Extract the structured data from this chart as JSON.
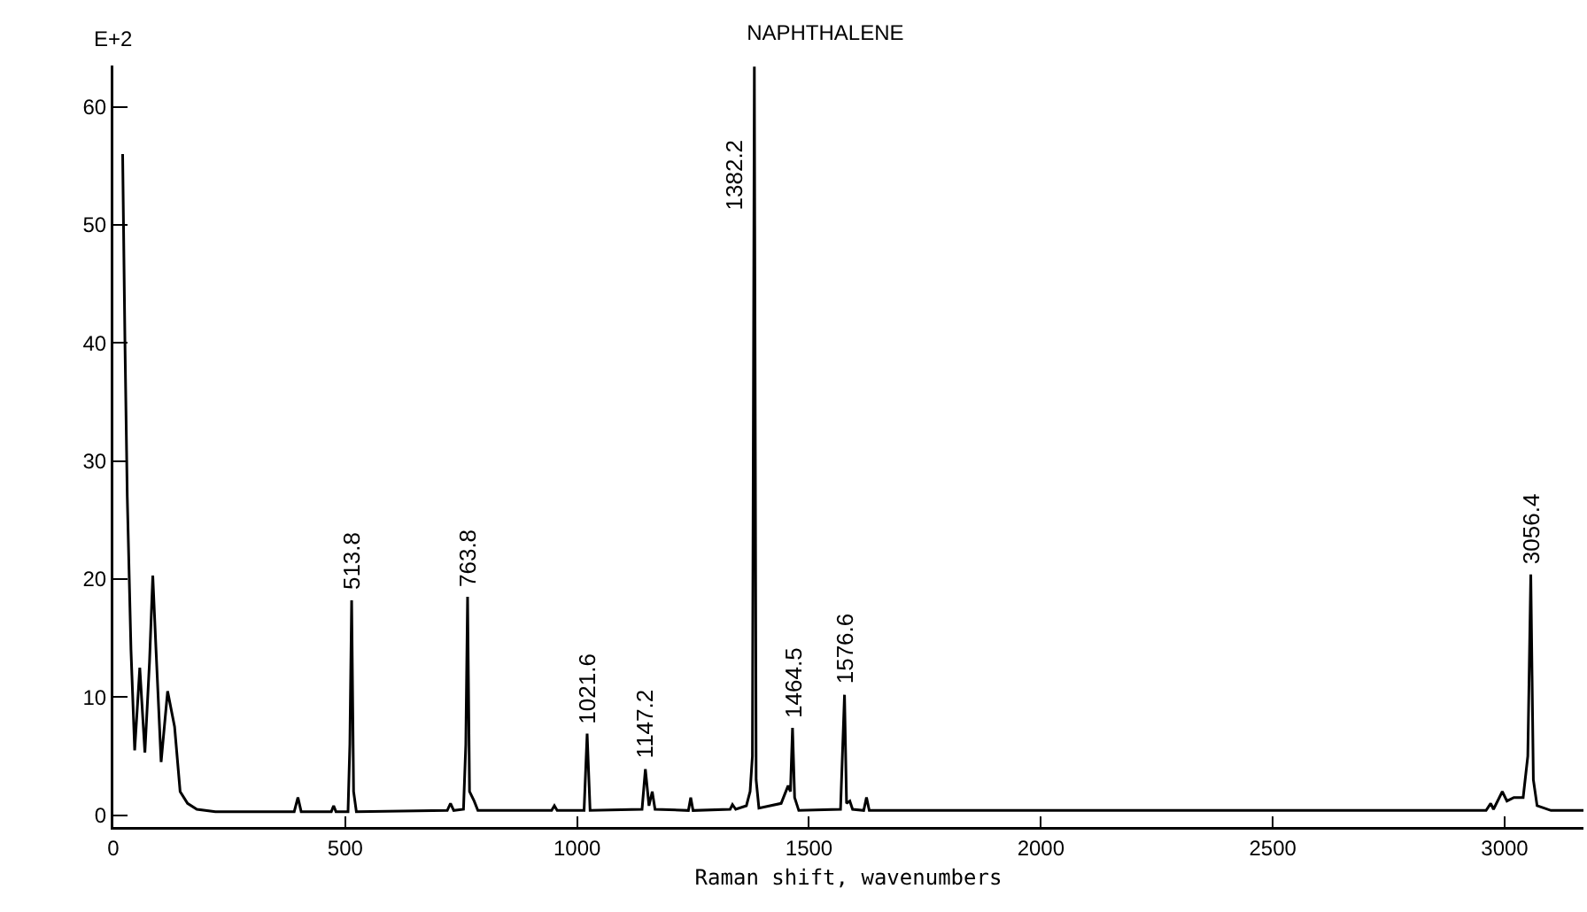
{
  "chart_data": {
    "type": "line",
    "title": "NAPHTHALENE",
    "xlabel": "Raman shift, wavenumbers",
    "xlim": [
      0,
      3170
    ],
    "xticks": [
      0,
      500,
      1000,
      1500,
      2000,
      2500,
      3000
    ],
    "ylim": [
      -1,
      63.5
    ],
    "yticks": [
      0,
      10,
      20,
      30,
      40,
      50,
      60
    ],
    "grid": false,
    "marker": "none",
    "line_style": "solid",
    "series": [
      {
        "color": "#000000",
        "x": [
          20,
          25,
          30,
          38,
          46,
          57,
          68,
          78,
          85,
          92,
          103,
          117,
          132,
          144,
          160,
          180,
          220,
          390,
          398,
          405,
          470,
          475,
          480,
          506,
          510,
          513.8,
          518,
          524,
          720,
          727,
          734,
          755,
          760,
          763.8,
          768,
          778,
          786,
          945,
          951,
          957,
          1015,
          1021.6,
          1028,
          1140,
          1147.2,
          1155,
          1162,
          1168,
          1240,
          1245,
          1250,
          1330,
          1335,
          1342,
          1365,
          1373,
          1378,
          1382.2,
          1386,
          1392,
          1440,
          1455,
          1460,
          1464.5,
          1469,
          1478,
          1568,
          1576.6,
          1581,
          1588,
          1594,
          1618,
          1624,
          1630,
          2960,
          2970,
          2976,
          2995,
          3005,
          3020,
          3040,
          3050,
          3056.4,
          3062,
          3070,
          3100,
          3170
        ],
        "values": [
          56,
          40,
          27,
          14,
          5.5,
          12.5,
          5.3,
          13,
          20.3,
          14,
          4.5,
          10.5,
          7.5,
          2,
          1,
          0.5,
          0.3,
          0.3,
          1.5,
          0.3,
          0.3,
          0.8,
          0.3,
          0.3,
          6,
          18.2,
          2,
          0.3,
          0.4,
          1,
          0.4,
          0.5,
          6,
          18.5,
          2,
          1.2,
          0.4,
          0.4,
          0.8,
          0.4,
          0.4,
          6.9,
          0.4,
          0.5,
          3.9,
          0.8,
          2,
          0.5,
          0.4,
          1.5,
          0.4,
          0.5,
          0.9,
          0.5,
          0.8,
          2,
          5,
          63.4,
          3,
          0.6,
          1,
          2.5,
          2,
          7.4,
          1.5,
          0.4,
          0.5,
          10.2,
          1,
          1.2,
          0.5,
          0.4,
          1.5,
          0.4,
          0.4,
          1,
          0.5,
          2,
          1.2,
          1.5,
          1.5,
          5,
          20.4,
          3,
          0.8,
          0.4,
          0.4
        ]
      }
    ],
    "annotations": [
      "E+2",
      {
        "text": "513.8",
        "x": 513.8,
        "y": 18.2
      },
      {
        "text": "763.8",
        "x": 763.8,
        "y": 18.5
      },
      {
        "text": "1021.6",
        "x": 1021.6,
        "y": 6.9
      },
      {
        "text": "1147.2",
        "x": 1147.2,
        "y": 3.9
      },
      {
        "text": "1382.2",
        "x": 1382.2,
        "y": 51
      },
      {
        "text": "1464.5",
        "x": 1464.5,
        "y": 7.4
      },
      {
        "text": "1576.6",
        "x": 1576.6,
        "y": 10.2
      },
      {
        "text": "3056.4",
        "x": 3056.4,
        "y": 20.4
      }
    ]
  }
}
